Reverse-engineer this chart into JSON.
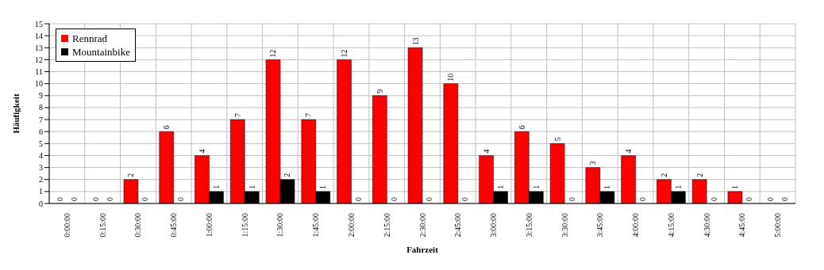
{
  "chart_data": {
    "type": "bar",
    "xlabel": "Fahrzeit",
    "ylabel": "Häufigkeit",
    "categories": [
      "0:00:00",
      "0:15:00",
      "0:30:00",
      "0:45:00",
      "1:00:00",
      "1:15:00",
      "1:30:00",
      "1:45:00",
      "2:00:00",
      "2:15:00",
      "2:30:00",
      "2:45:00",
      "3:00:00",
      "3:15:00",
      "3:30:00",
      "3:45:00",
      "4:00:00",
      "4:15:00",
      "4:30:00",
      "4:45:00",
      "5:00:00"
    ],
    "series": [
      {
        "name": "Rennrad",
        "color": "#ff0000",
        "values": [
          0,
          0,
          2,
          6,
          4,
          7,
          12,
          7,
          12,
          9,
          13,
          10,
          4,
          6,
          5,
          3,
          4,
          2,
          2,
          1,
          0
        ]
      },
      {
        "name": "Mountainbike",
        "color": "#000000",
        "values": [
          0,
          0,
          0,
          0,
          1,
          1,
          2,
          1,
          0,
          0,
          0,
          0,
          1,
          1,
          0,
          1,
          0,
          1,
          0,
          0,
          0
        ]
      }
    ],
    "ylim": [
      0,
      15
    ],
    "yticks": [
      0,
      1,
      2,
      3,
      4,
      5,
      6,
      7,
      8,
      9,
      10,
      11,
      12,
      13,
      14,
      15
    ],
    "grid": true,
    "legend": "top left",
    "data_labels": true
  }
}
